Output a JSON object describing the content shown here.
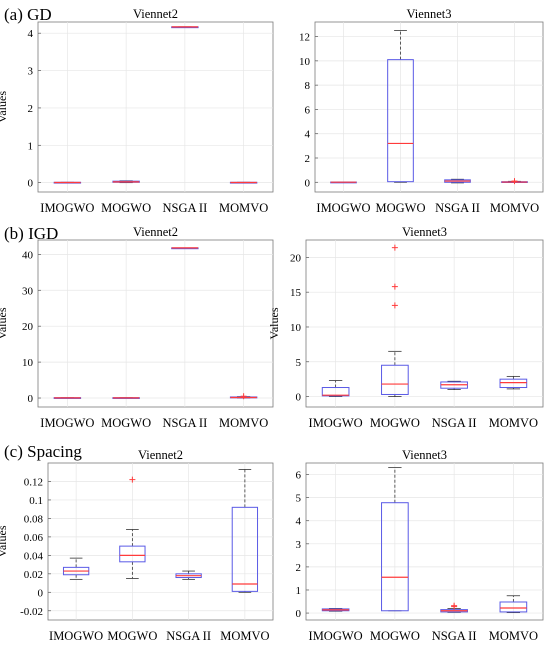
{
  "panels": [
    {
      "label": "(a) GD"
    },
    {
      "label": "(b) IGD"
    },
    {
      "label": "(c) Spacing"
    }
  ],
  "colors": {
    "box": "#5a5ae6",
    "median": "#ff3b3b",
    "outlier": "#ff3b3b",
    "whisker": "#333333",
    "grid": "#e6e6e6"
  },
  "chart_data": [
    {
      "type": "box",
      "title": "Viennet2",
      "ylabel": "Values",
      "ylim": [
        -0.25,
        4.3
      ],
      "yticks": [
        0,
        1,
        2,
        3,
        4
      ],
      "tick_labels": [
        "0",
        "1",
        "2",
        "3",
        "4"
      ],
      "categories": [
        "IMOGWO",
        "MOGWO",
        "NSGA II",
        "MOMVO"
      ],
      "boxes": [
        {
          "min": 0,
          "q1": 0,
          "median": 0.005,
          "q3": 0.01,
          "max": 0.01,
          "outliers": []
        },
        {
          "min": 0,
          "q1": 0.01,
          "median": 0.02,
          "q3": 0.04,
          "max": 0.05,
          "outliers": []
        },
        {
          "min": 4.17,
          "q1": 4.17,
          "median": 4.17,
          "q3": 4.17,
          "max": 4.17,
          "outliers": []
        },
        {
          "min": 0,
          "q1": 0,
          "median": 0.005,
          "q3": 0.01,
          "max": 0.01,
          "outliers": []
        }
      ]
    },
    {
      "type": "box",
      "title": "Viennet3",
      "ylabel": "",
      "ylim": [
        -0.8,
        13.2
      ],
      "yticks": [
        0,
        2,
        4,
        6,
        8,
        10,
        12
      ],
      "tick_labels": [
        "0",
        "2",
        "4",
        "6",
        "8",
        "10",
        "12"
      ],
      "categories": [
        "IMOGWO",
        "MOGWO",
        "NSGA II",
        "MOMVO"
      ],
      "boxes": [
        {
          "min": 0,
          "q1": 0,
          "median": 0.01,
          "q3": 0.02,
          "max": 0.02,
          "outliers": []
        },
        {
          "min": 0,
          "q1": 0.05,
          "median": 3.2,
          "q3": 10.1,
          "max": 12.5,
          "outliers": []
        },
        {
          "min": -0.05,
          "q1": 0.0,
          "median": 0.1,
          "q3": 0.2,
          "max": 0.25,
          "outliers": []
        },
        {
          "min": 0,
          "q1": 0,
          "median": 0.02,
          "q3": 0.05,
          "max": 0.08,
          "outliers": [
            0.1
          ]
        }
      ]
    },
    {
      "type": "box",
      "title": "Viennet2",
      "ylabel": "Values",
      "ylim": [
        -2.5,
        44
      ],
      "yticks": [
        0,
        10,
        20,
        30,
        40
      ],
      "tick_labels": [
        "0",
        "10",
        "20",
        "30",
        "40"
      ],
      "categories": [
        "IMOGWO",
        "MOGWO",
        "NSGA II",
        "MOMVO"
      ],
      "boxes": [
        {
          "min": 0,
          "q1": 0,
          "median": 0.05,
          "q3": 0.1,
          "max": 0.1,
          "outliers": []
        },
        {
          "min": 0,
          "q1": 0,
          "median": 0.05,
          "q3": 0.1,
          "max": 0.1,
          "outliers": []
        },
        {
          "min": 41.8,
          "q1": 41.8,
          "median": 41.8,
          "q3": 41.8,
          "max": 41.8,
          "outliers": []
        },
        {
          "min": 0,
          "q1": 0.05,
          "median": 0.15,
          "q3": 0.3,
          "max": 0.4,
          "outliers": [
            0.5
          ]
        }
      ]
    },
    {
      "type": "box",
      "title": "Viennet3",
      "ylabel": "Values",
      "ylim": [
        -1.5,
        22.5
      ],
      "yticks": [
        0,
        5,
        10,
        15,
        20
      ],
      "tick_labels": [
        "0",
        "5",
        "10",
        "15",
        "20"
      ],
      "categories": [
        "IMOGWO",
        "MOGWO",
        "NSGA II",
        "MOMVO"
      ],
      "boxes": [
        {
          "min": 0,
          "q1": 0.1,
          "median": 0.2,
          "q3": 1.3,
          "max": 2.3,
          "outliers": []
        },
        {
          "min": 0,
          "q1": 0.3,
          "median": 1.8,
          "q3": 4.5,
          "max": 6.5,
          "outliers": [
            13.1,
            15.8,
            21.4
          ]
        },
        {
          "min": 1.0,
          "q1": 1.2,
          "median": 1.7,
          "q3": 2.1,
          "max": 2.2,
          "outliers": []
        },
        {
          "min": 1.1,
          "q1": 1.3,
          "median": 2.0,
          "q3": 2.5,
          "max": 2.9,
          "outliers": []
        }
      ]
    },
    {
      "type": "box",
      "title": "Viennet2",
      "ylabel": "Values",
      "ylim": [
        -0.03,
        0.14
      ],
      "yticks": [
        -0.02,
        0,
        0.02,
        0.04,
        0.06,
        0.08,
        0.1,
        0.12
      ],
      "tick_labels": [
        "-0.02",
        "0",
        "0.02",
        "0.04",
        "0.06",
        "0.08",
        "0.1",
        "0.12"
      ],
      "categories": [
        "IMOGWO",
        "MOGWO",
        "NSGA II",
        "MOMVO"
      ],
      "boxes": [
        {
          "min": 0.014,
          "q1": 0.019,
          "median": 0.023,
          "q3": 0.027,
          "max": 0.037,
          "outliers": []
        },
        {
          "min": 0.015,
          "q1": 0.033,
          "median": 0.04,
          "q3": 0.05,
          "max": 0.068,
          "outliers": [
            0.122
          ]
        },
        {
          "min": 0.014,
          "q1": 0.016,
          "median": 0.018,
          "q3": 0.02,
          "max": 0.023,
          "outliers": []
        },
        {
          "min": 0,
          "q1": 0.001,
          "median": 0.009,
          "q3": 0.092,
          "max": 0.133,
          "outliers": []
        }
      ]
    },
    {
      "type": "box",
      "title": "Viennet3",
      "ylabel": "",
      "ylim": [
        -0.3,
        6.5
      ],
      "yticks": [
        0,
        1,
        2,
        3,
        4,
        5,
        6
      ],
      "tick_labels": [
        "0",
        "1",
        "2",
        "3",
        "4",
        "5",
        "6"
      ],
      "categories": [
        "IMOGWO",
        "MOGWO",
        "NSGA II",
        "MOMVO"
      ],
      "boxes": [
        {
          "min": 0.08,
          "q1": 0.1,
          "median": 0.14,
          "q3": 0.18,
          "max": 0.2,
          "outliers": []
        },
        {
          "min": 0.1,
          "q1": 0.1,
          "median": 1.55,
          "q3": 4.78,
          "max": 6.3,
          "outliers": []
        },
        {
          "min": 0.03,
          "q1": 0.05,
          "median": 0.1,
          "q3": 0.15,
          "max": 0.2,
          "outliers": [
            0.28,
            0.32
          ]
        },
        {
          "min": 0.02,
          "q1": 0.05,
          "median": 0.22,
          "q3": 0.48,
          "max": 0.75,
          "outliers": []
        }
      ]
    }
  ]
}
